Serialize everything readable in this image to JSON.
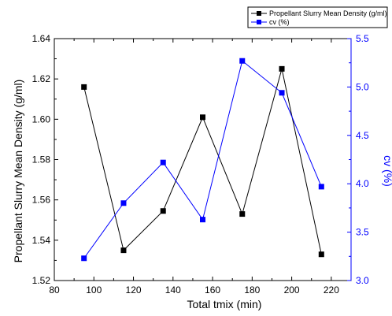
{
  "chart_data": {
    "type": "line",
    "x": [
      95,
      115,
      135,
      155,
      175,
      195,
      215
    ],
    "xlabel": "Total tmix (min)",
    "ylabel_left": "Propellant Slurry Mean Density (g/ml)",
    "ylabel_right": "cv (%)",
    "xlim": [
      80,
      230
    ],
    "ylim_left": [
      1.52,
      1.64
    ],
    "ylim_right": [
      3.0,
      5.5
    ],
    "xticks": [
      "80",
      "100",
      "120",
      "140",
      "160",
      "180",
      "200",
      "220"
    ],
    "yticks_left": [
      "1.52",
      "1.54",
      "1.56",
      "1.58",
      "1.60",
      "1.62",
      "1.64"
    ],
    "yticks_right": [
      "3.0",
      "3.5",
      "4.0",
      "4.5",
      "5.0",
      "5.5"
    ],
    "grid": false,
    "legend_position": "top-right",
    "series": [
      {
        "name": "Propellant Slurry Mean Density (g/ml)",
        "axis": "left",
        "color": "#000000",
        "marker": "square",
        "values": [
          1.616,
          1.535,
          1.5545,
          1.601,
          1.553,
          1.625,
          1.533
        ]
      },
      {
        "name": "cv (%)",
        "axis": "right",
        "color": "#0000ff",
        "marker": "square",
        "values": [
          3.23,
          3.8,
          4.22,
          3.63,
          5.27,
          4.94,
          3.97
        ]
      }
    ]
  }
}
